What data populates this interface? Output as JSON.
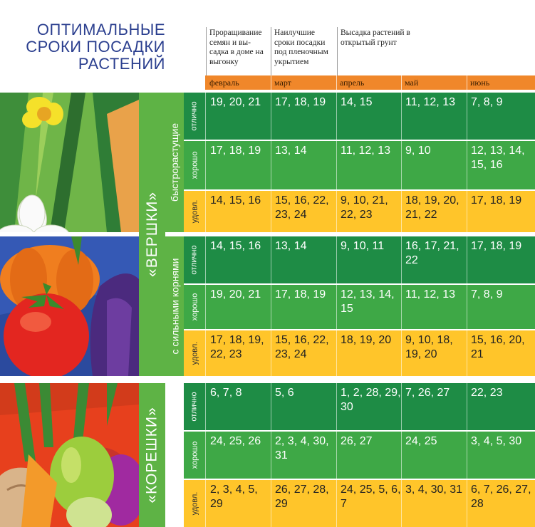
{
  "title": [
    "ОПТИМАЛЬНЫЕ",
    "СРОКИ ПОСАДКИ",
    "РАСТЕНИЙ"
  ],
  "column_headers": [
    "Проращивание семян и вы- садка в доме на выгонку",
    "Наилучшие сроки посадки под пленочным укрытием",
    "Высадка растений в открытый грунт"
  ],
  "months": [
    "февраль",
    "март",
    "апрель",
    "май",
    "июнь"
  ],
  "categories": {
    "vershki": "«ВЕРШКИ»",
    "koreshki": "«КОРЕШКИ»"
  },
  "subgroups": {
    "fast": "быстрорастущие",
    "roots": "с сильными корнями"
  },
  "ratings": [
    "отлично",
    "хорошо",
    "удовл."
  ],
  "colors": {
    "dark_green": "#1e8c45",
    "green": "#3ea846",
    "yellow": "#ffc52a",
    "orange": "#f0872a",
    "title_blue": "#2b3f8f"
  },
  "rows": [
    {
      "rating": "отлично",
      "cells": [
        "19, 20, 21",
        "17, 18, 19",
        "14, 15",
        "11, 12, 13",
        "7, 8, 9"
      ]
    },
    {
      "rating": "хорошо",
      "cells": [
        "17, 18, 19",
        "13, 14",
        "11, 12, 13",
        "9, 10",
        "12, 13, 14, 15, 16"
      ]
    },
    {
      "rating": "удовл.",
      "cells": [
        "14, 15, 16",
        "15, 16, 22, 23, 24",
        "9, 10, 21, 22, 23",
        "18, 19, 20, 21, 22",
        "17, 18, 19"
      ]
    },
    {
      "rating": "отлично",
      "cells": [
        "14, 15, 16",
        "13, 14",
        "9, 10, 11",
        "16, 17, 21, 22",
        "17, 18, 19"
      ]
    },
    {
      "rating": "хорошо",
      "cells": [
        "19, 20, 21",
        "17, 18, 19",
        "12, 13, 14, 15",
        "11, 12, 13",
        "7, 8, 9"
      ]
    },
    {
      "rating": "удовл.",
      "cells": [
        "17, 18, 19, 22, 23",
        "15, 16, 22, 23, 24",
        "18, 19, 20",
        "9, 10, 18, 19, 20",
        "15, 16, 20, 21"
      ]
    },
    {
      "rating": "отлично",
      "cells": [
        "6, 7, 8",
        "5, 6",
        "1, 2, 28, 29, 30",
        "7, 26, 27",
        "22, 23"
      ]
    },
    {
      "rating": "хорошо",
      "cells": [
        "24, 25, 26",
        "2, 3, 4, 30, 31",
        "26, 27",
        "24, 25",
        "3, 4, 5, 30"
      ]
    },
    {
      "rating": "удовл.",
      "cells": [
        "2, 3, 4, 5, 29",
        "26, 27, 28, 29",
        "24, 25, 5, 6, 7",
        "3, 4, 30, 31",
        "6, 7, 26, 27, 28"
      ]
    }
  ]
}
